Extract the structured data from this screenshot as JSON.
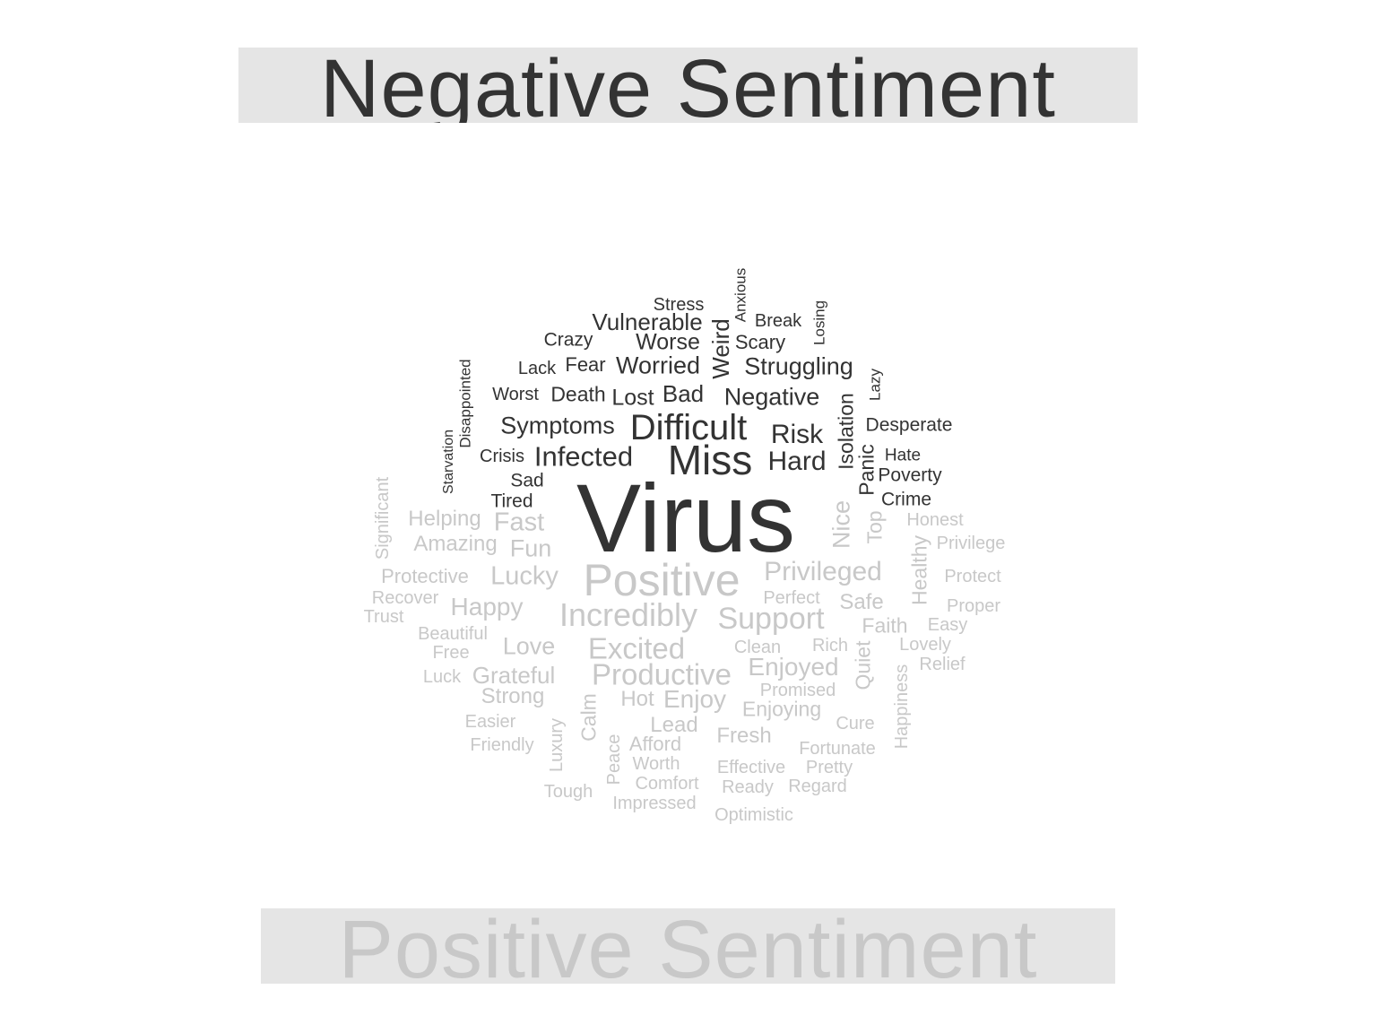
{
  "colors": {
    "negative": "#333333",
    "positive": "#c8c8c8"
  },
  "labels": {
    "top_title": "Negative Sentiment",
    "bottom_title": "Positive Sentiment"
  },
  "words": {
    "negative": [
      "Virus",
      "Miss",
      "Difficult",
      "Infected",
      "Struggling",
      "Negative",
      "Risk",
      "Hard",
      "Worried",
      "Weird",
      "Vulnerable",
      "Symptoms",
      "Worse",
      "Bad",
      "Lost",
      "Death",
      "Fear",
      "Scary",
      "Isolation",
      "Panic",
      "Desperate",
      "Poverty",
      "Crime",
      "Hate",
      "Crazy",
      "Break",
      "Worst",
      "Lack",
      "Crisis",
      "Sad",
      "Tired",
      "Stress",
      "Anxious",
      "Losing",
      "Lazy",
      "Disappointed",
      "Starvation"
    ],
    "positive": [
      "Positive",
      "Incredibly",
      "Support",
      "Privileged",
      "Excited",
      "Productive",
      "Enjoyed",
      "Fast",
      "Lucky",
      "Happy",
      "Love",
      "Grateful",
      "Enjoy",
      "Helping",
      "Amazing",
      "Fun",
      "Nice",
      "Safe",
      "Faith",
      "Healthy",
      "Top",
      "Strong",
      "Fresh",
      "Hot",
      "Lead",
      "Afford",
      "Enjoying",
      "Calm",
      "Quiet",
      "Significant",
      "Protective",
      "Clean",
      "Rich",
      "Perfect",
      "Privilege",
      "Protect",
      "Proper",
      "Honest",
      "Easy",
      "Lovely",
      "Relief",
      "Beautiful",
      "Free",
      "Luck",
      "Recover",
      "Trust",
      "Easier",
      "Friendly",
      "Luxury",
      "Peace",
      "Worth",
      "Comfort",
      "Impressed",
      "Tough",
      "Effective",
      "Ready",
      "Regard",
      "Optimistic",
      "Promised",
      "Cure",
      "Fortunate",
      "Pretty",
      "Happiness"
    ]
  }
}
